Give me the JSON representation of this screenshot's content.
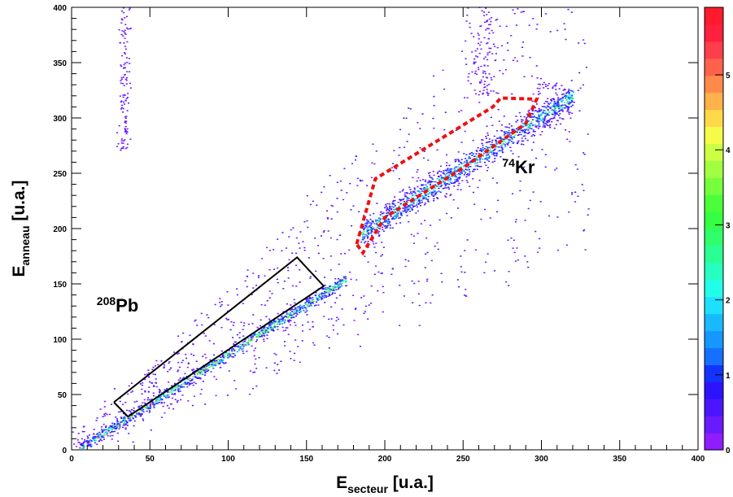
{
  "chart_data": {
    "type": "heatmap",
    "title": "",
    "xlabel": {
      "main": "E",
      "sub": "secteur",
      "unit": " [u.a.]"
    },
    "ylabel": {
      "main": "E",
      "sub": "anneau",
      "unit": " [u.a.]"
    },
    "xlim": [
      0,
      400
    ],
    "ylim": [
      0,
      400
    ],
    "x_ticks": [
      0,
      50,
      100,
      150,
      200,
      250,
      300,
      350,
      400
    ],
    "y_ticks": [
      0,
      50,
      100,
      150,
      200,
      250,
      300,
      350,
      400
    ],
    "colorbar": {
      "range": [
        0,
        5.9
      ],
      "ticks": [
        0,
        1,
        2,
        3,
        4,
        5
      ],
      "colors": [
        "#8e1dff",
        "#6a1aff",
        "#4b16ff",
        "#2e13ff",
        "#1433ff",
        "#1570ff",
        "#1696ff",
        "#19b9ff",
        "#1ddfff",
        "#22ffe9",
        "#26ffbf",
        "#2aff94",
        "#2fff6b",
        "#34ff43",
        "#4aff39",
        "#75ff3d",
        "#a1ff41",
        "#ccff44",
        "#f4fb48",
        "#ffd949",
        "#ffb14a",
        "#ff894a",
        "#ff624b",
        "#ff3e4b",
        "#ff1f3e",
        "#ff1a2d"
      ]
    },
    "bands": [
      {
        "name": "208Pb",
        "x_range": [
          5,
          175
        ],
        "slope": 0.9,
        "offset": -4,
        "width": 4,
        "counts": 5.5
      },
      {
        "name": "74Kr",
        "x_range": [
          185,
          320
        ],
        "slope": 0.92,
        "offset": 25,
        "width": 9,
        "counts": 3.8
      }
    ],
    "regions": [
      {
        "name": "208Pb",
        "style": "solid",
        "color": "#000000",
        "vertices": [
          [
            27,
            43
          ],
          [
            36,
            30
          ],
          [
            161,
            148
          ],
          [
            144,
            174
          ],
          [
            27,
            43
          ]
        ]
      },
      {
        "name": "74Kr",
        "style": "dashed",
        "color": "#ee1111",
        "vertices": [
          [
            182,
            186
          ],
          [
            194,
            245
          ],
          [
            269,
            310
          ],
          [
            274,
            318
          ],
          [
            297,
            317
          ],
          [
            290,
            295
          ],
          [
            250,
            255
          ],
          [
            200,
            210
          ],
          [
            186,
            178
          ],
          [
            182,
            186
          ]
        ]
      }
    ],
    "annotations": [
      {
        "mass": "208",
        "element": "Pb",
        "x": 16,
        "y": 125
      },
      {
        "mass": "74",
        "element": "Kr",
        "x": 275,
        "y": 250
      }
    ]
  }
}
